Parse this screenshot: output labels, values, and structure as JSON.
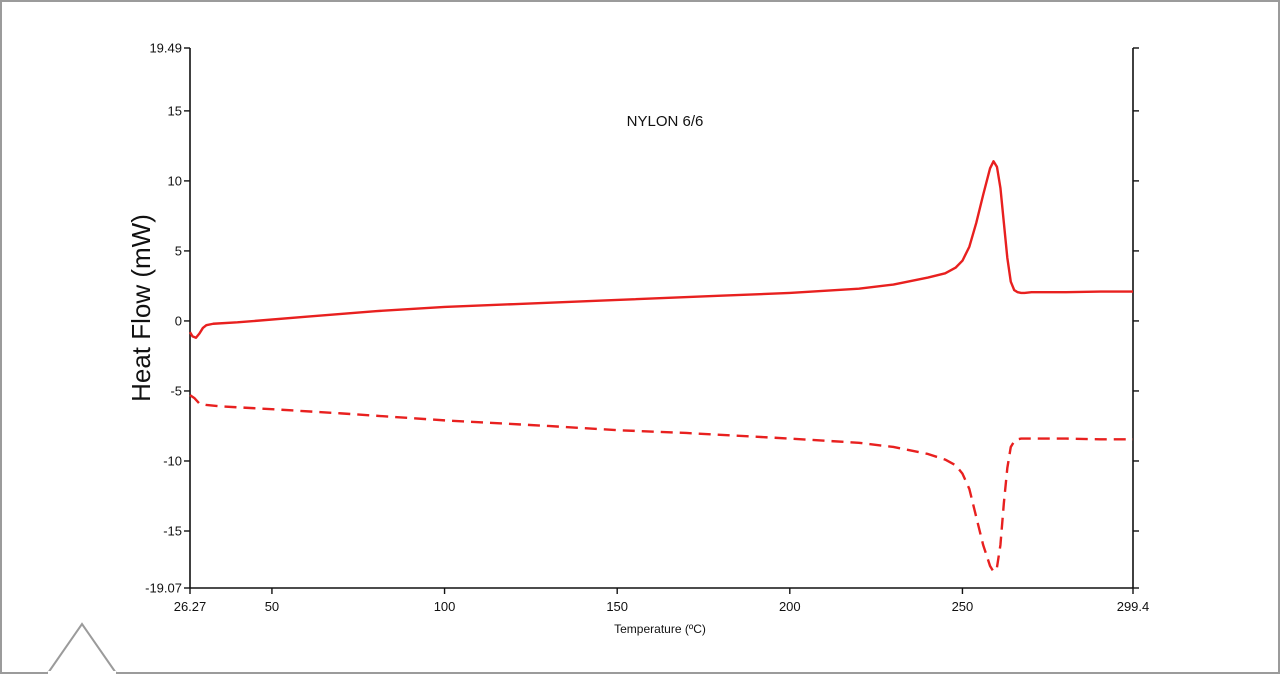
{
  "chart_data": {
    "type": "line",
    "title": "NYLON 6/6",
    "xlabel": "Temperature (ºC)",
    "ylabel": "Heat Flow (mW)",
    "xlim": [
      26.27,
      299.4
    ],
    "ylim": [
      -19.07,
      19.49
    ],
    "x_ticks": [
      "26.27",
      "50",
      "100",
      "150",
      "200",
      "250",
      "299.4"
    ],
    "x_tick_values": [
      26.27,
      50,
      100,
      150,
      200,
      250,
      299.4
    ],
    "y_ticks": [
      "19.49",
      "15",
      "10",
      "5",
      "0",
      "-5",
      "-10",
      "-15",
      "-19.07"
    ],
    "y_tick_values": [
      19.49,
      15,
      10,
      5,
      0,
      -5,
      -10,
      -15,
      -19.07
    ],
    "grid": false,
    "series": [
      {
        "style": "solid",
        "color": "#e8201f",
        "x": [
          26.27,
          27.0,
          28.0,
          29.0,
          30.0,
          31.0,
          33.0,
          40,
          60,
          80,
          100,
          120,
          150,
          180,
          200,
          220,
          230,
          240,
          245,
          248,
          250,
          252,
          254,
          256,
          258,
          259,
          260,
          261,
          262,
          263,
          264,
          265,
          266,
          267,
          268,
          270,
          280,
          290,
          299.4
        ],
        "y": [
          -0.8,
          -1.1,
          -1.2,
          -0.9,
          -0.5,
          -0.3,
          -0.2,
          -0.1,
          0.3,
          0.7,
          1.0,
          1.2,
          1.5,
          1.8,
          2.0,
          2.3,
          2.6,
          3.1,
          3.4,
          3.8,
          4.3,
          5.3,
          7.0,
          9.0,
          10.9,
          11.4,
          11.0,
          9.5,
          7.0,
          4.5,
          2.8,
          2.2,
          2.05,
          2.0,
          2.0,
          2.05,
          2.05,
          2.1,
          2.1
        ]
      },
      {
        "style": "dashed",
        "color": "#e8201f",
        "x": [
          26.27,
          27.5,
          29.0,
          31.0,
          35,
          50,
          70,
          100,
          130,
          150,
          170,
          200,
          220,
          230,
          240,
          245,
          248,
          250,
          252,
          254,
          256,
          258,
          259,
          260,
          261,
          262,
          263,
          264,
          265,
          266,
          267,
          268,
          270,
          280,
          290,
          299.4
        ],
        "y": [
          -5.3,
          -5.5,
          -5.9,
          -6.0,
          -6.1,
          -6.3,
          -6.6,
          -7.1,
          -7.5,
          -7.8,
          -8.0,
          -8.4,
          -8.7,
          -9.0,
          -9.5,
          -9.9,
          -10.3,
          -10.9,
          -12.0,
          -14.0,
          -16.0,
          -17.5,
          -17.9,
          -17.6,
          -16.0,
          -13.0,
          -10.5,
          -9.0,
          -8.6,
          -8.45,
          -8.4,
          -8.4,
          -8.4,
          -8.4,
          -8.45,
          -8.45
        ]
      }
    ]
  }
}
